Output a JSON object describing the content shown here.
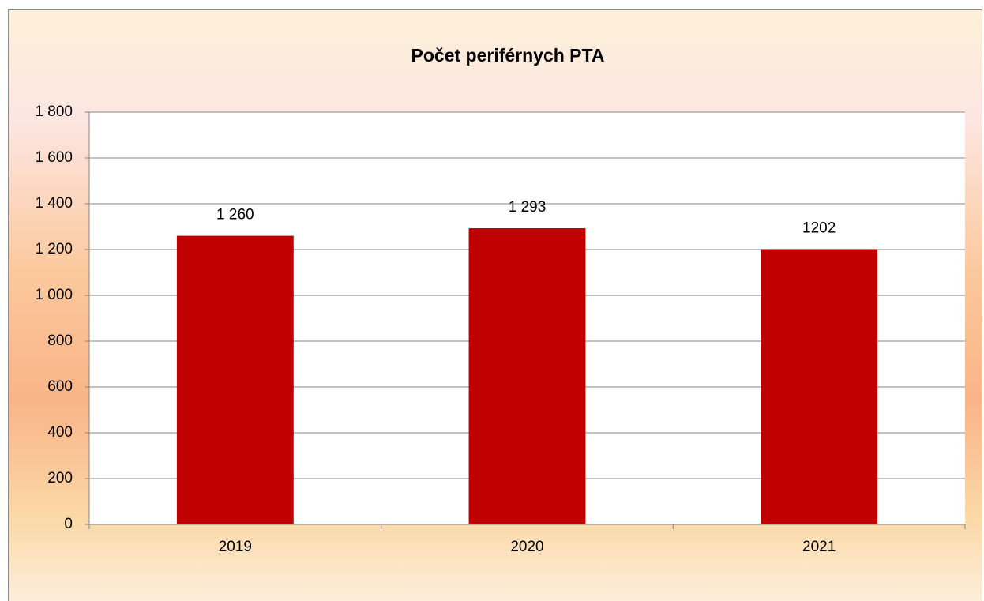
{
  "chart_data": {
    "type": "bar",
    "title": "Počet periférnych PTA",
    "categories": [
      "2019",
      "2020",
      "2021"
    ],
    "values": [
      1260,
      1293,
      1202
    ],
    "value_labels": [
      "1 260",
      "1 293",
      "1202"
    ],
    "color": "#c00000",
    "ylim": [
      0,
      1800
    ],
    "yticks": [
      0,
      200,
      400,
      600,
      800,
      {
        "value": 1000,
        "label": "1 000"
      },
      {
        "value": 1200,
        "label": "1 200"
      },
      {
        "value": 1400,
        "label": "1 400"
      },
      {
        "value": 1600,
        "label": "1 600"
      },
      {
        "value": 1800,
        "label": "1 800"
      }
    ],
    "grid": true
  }
}
